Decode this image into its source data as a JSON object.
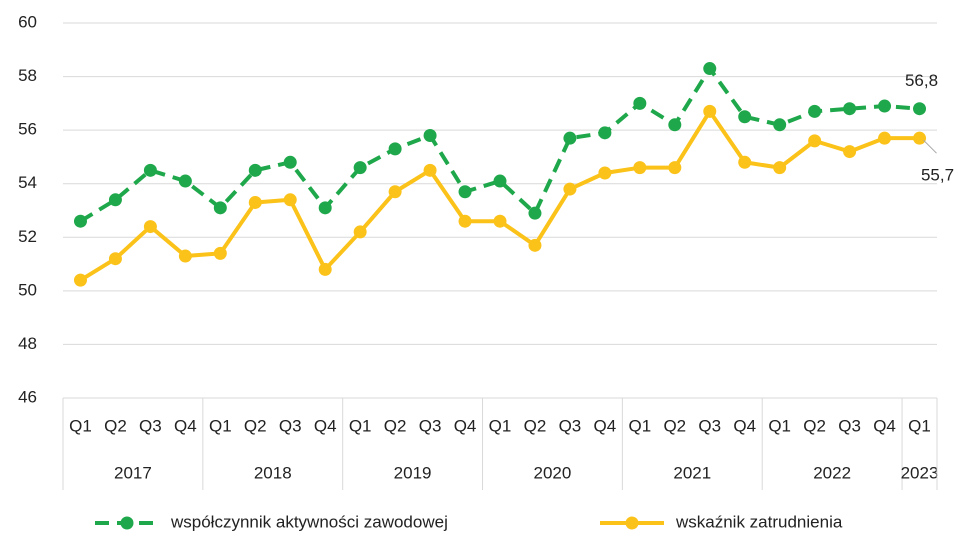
{
  "chart_data": {
    "type": "line",
    "groups": [
      {
        "label": "2017",
        "categories": [
          "Q1",
          "Q2",
          "Q3",
          "Q4"
        ]
      },
      {
        "label": "2018",
        "categories": [
          "Q1",
          "Q2",
          "Q3",
          "Q4"
        ]
      },
      {
        "label": "2019",
        "categories": [
          "Q1",
          "Q2",
          "Q3",
          "Q4"
        ]
      },
      {
        "label": "2020",
        "categories": [
          "Q1",
          "Q2",
          "Q3",
          "Q4"
        ]
      },
      {
        "label": "2021",
        "categories": [
          "Q1",
          "Q2",
          "Q3",
          "Q4"
        ]
      },
      {
        "label": "2022",
        "categories": [
          "Q1",
          "Q2",
          "Q3",
          "Q4"
        ]
      },
      {
        "label": "2023",
        "categories": [
          "Q1"
        ]
      }
    ],
    "series": [
      {
        "name": "współczynnik aktywności zawodowej",
        "color": "#1fa84b",
        "dashed": true,
        "values": [
          52.6,
          53.4,
          54.5,
          54.1,
          53.1,
          54.5,
          54.8,
          53.1,
          54.6,
          55.3,
          55.8,
          53.7,
          54.1,
          52.9,
          55.7,
          55.9,
          57.0,
          56.2,
          58.3,
          56.5,
          56.2,
          56.7,
          56.8,
          56.9,
          56.8
        ],
        "value_labels": [
          null,
          null,
          null,
          null,
          null,
          null,
          null,
          null,
          null,
          null,
          null,
          null,
          null,
          null,
          null,
          null,
          null,
          null,
          null,
          null,
          null,
          null,
          null,
          null,
          "56,8"
        ]
      },
      {
        "name": "wskaźnik zatrudnienia",
        "color": "#fbc219",
        "dashed": false,
        "values": [
          50.4,
          51.2,
          52.4,
          51.3,
          51.4,
          53.3,
          53.4,
          50.8,
          52.2,
          53.7,
          54.5,
          52.6,
          52.6,
          51.7,
          53.8,
          54.4,
          54.6,
          54.6,
          56.7,
          54.8,
          54.6,
          55.6,
          55.2,
          55.7,
          55.7
        ],
        "value_labels": [
          null,
          null,
          null,
          null,
          null,
          null,
          null,
          null,
          null,
          null,
          null,
          null,
          null,
          null,
          null,
          null,
          null,
          null,
          null,
          null,
          null,
          null,
          null,
          null,
          "55,7"
        ]
      }
    ],
    "ylim": [
      46,
      60
    ],
    "yticks": [
      46,
      48,
      50,
      52,
      54,
      56,
      58,
      60
    ],
    "grid": true,
    "legend": "bottom"
  }
}
